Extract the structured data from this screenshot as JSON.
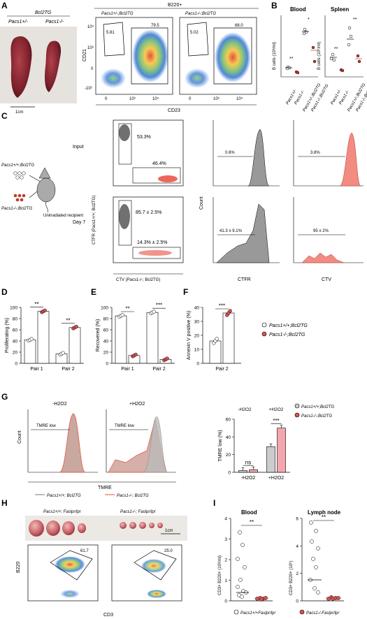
{
  "panels": [
    "A",
    "B",
    "C",
    "D",
    "E",
    "F",
    "G",
    "H",
    "I"
  ],
  "panelA": {
    "group_label": "Bcl2TG",
    "left_label": "Pacs1+/-",
    "right_label": "Pacs1-/-",
    "scale": "1cm",
    "gate_header": "B220+",
    "plot1_title": "Pacs1+/-;Bcl2TG",
    "plot2_title": "Pacs1-/-;Bcl2TG",
    "ylabel": "CD21",
    "xlabel": "CD23",
    "plot1_gates": [
      "5.81",
      "79.5"
    ],
    "plot2_gates": [
      "5.02",
      "68.0"
    ],
    "ticks": [
      "0",
      "10³",
      "10⁴",
      "10³",
      "10⁴",
      "-10²"
    ]
  },
  "panelB": {
    "titles": [
      "Blood",
      "Spleen"
    ],
    "ylabel_left": "B cells (10³/ml)",
    "ylabel_right": "B cells (10⁶/ml)",
    "sig": [
      "**",
      "*",
      "**",
      "**"
    ],
    "categories": [
      "Pacs1+/-",
      "Pacs1-/-",
      "Pacs1+/-;Bcl2TG",
      "Pacs1-/-;Bcl2TG"
    ]
  },
  "panelC": {
    "mouse_top": "Pacs1+/+;Bcl2TG",
    "mouse_bottom": "Pacs1-/-;Bcl2TG",
    "recipient": "Unirradiated recipient",
    "row1": "Input",
    "row2": "Day 7",
    "ylabel": "CTFR (Pacs1+/+; Bcl2TG)",
    "xlabel": "CTV (Pacs1-/-; Bcl2TG)",
    "input_gates": [
      "53.3%",
      "46.4%"
    ],
    "day7_gates": [
      "85.7 ± 2.5%",
      "14.3% ± 2.5%"
    ],
    "hist_input": [
      "0.6%",
      "3.8%"
    ],
    "hist_day7": [
      "41.3 ± 9.1%",
      "95 ± 2%"
    ],
    "count_label": "Count",
    "hist_xlabels": [
      "CTFR",
      "CTV"
    ]
  },
  "chart_data": [
    {
      "type": "bar",
      "panel": "D",
      "ylabel": "Proliferating (%)",
      "categories": [
        "Pair 1",
        "Pair 2"
      ],
      "ylim": [
        0,
        100
      ],
      "yticks": [
        "0",
        "20",
        "40",
        "60",
        "80",
        "100"
      ],
      "series": [
        {
          "values": [
            42,
            17
          ],
          "color": "#ffffff"
        },
        {
          "values": [
            93,
            64
          ],
          "color": "#d9534f"
        }
      ],
      "sig": [
        "**",
        "**"
      ]
    },
    {
      "type": "bar",
      "panel": "E",
      "ylabel": "Recovered (%)",
      "categories": [
        "Pair 1",
        "Pair 2"
      ],
      "ylim": [
        0,
        100
      ],
      "yticks": [
        "0",
        "20",
        "40",
        "60",
        "80",
        "100"
      ],
      "series": [
        {
          "values": [
            85,
            91
          ],
          "color": "#ffffff"
        },
        {
          "values": [
            14,
            7
          ],
          "color": "#d9534f"
        }
      ],
      "sig": [
        "**",
        "***"
      ]
    },
    {
      "type": "bar",
      "panel": "F",
      "ylabel": "Annexin V positive (%)",
      "categories": [
        "Pair 2"
      ],
      "ylim": [
        0,
        40
      ],
      "yticks": [
        "0",
        "10",
        "20",
        "30",
        "40"
      ],
      "series": [
        {
          "values": [
            16
          ],
          "color": "#ffffff"
        },
        {
          "values": [
            36
          ],
          "color": "#d9534f"
        }
      ],
      "sig": [
        "***"
      ]
    },
    {
      "type": "bar",
      "panel": "G",
      "ylabel": "TMRE low (%)",
      "groups": [
        "-H2O2",
        "+H2O2"
      ],
      "ylim": [
        0,
        60
      ],
      "yticks": [
        "0",
        "20",
        "40",
        "60"
      ],
      "series": [
        {
          "values": [
            2,
            29
          ],
          "color": "#cccccc"
        },
        {
          "values": [
            3,
            50
          ],
          "color": "#f4a6ad"
        }
      ],
      "sig": [
        "ns",
        "***"
      ]
    }
  ],
  "legend": {
    "a": "Pacs1+/+;Bcl2TG",
    "b": "Pacs1-/-;Bcl2TG"
  },
  "panelG": {
    "hist1_title": "-H2O2",
    "hist2_title": "+H2O2",
    "gate": "TMRE low",
    "xlabel": "TMRE",
    "ylabel": "Count",
    "legend_a": "Pacs1+/+; Bcl2TG",
    "legend_b": "Pacs1-/-; Bcl2TG",
    "bar_groups": [
      "-H2O2",
      "+H2O2"
    ]
  },
  "panelH": {
    "left": "Pacs1+/+; Faslpr/lpr",
    "right": "Pacs1-/-; Faslpr/lpr",
    "scale": "1cm",
    "gate1": "61.7",
    "gate2": "25.0",
    "ylabel": "B220",
    "xlabel": "CD3"
  },
  "panelI": {
    "titles": [
      "Blood",
      "Lymph node"
    ],
    "ylabel_left": "CD3+ B220+ (10³/ml)",
    "ylabel_right": "CD3+ B220+ (10⁶)",
    "sig": [
      "**",
      "**"
    ],
    "legend_a": "Pacs1+/+Faslpr/lpr",
    "legend_b": "Pacs1-/-Faslpr/lpr",
    "left_yticks": [
      "0",
      "1",
      "2",
      "3",
      "4"
    ],
    "right_yticks": [
      "0",
      "2",
      "4",
      "6"
    ]
  }
}
